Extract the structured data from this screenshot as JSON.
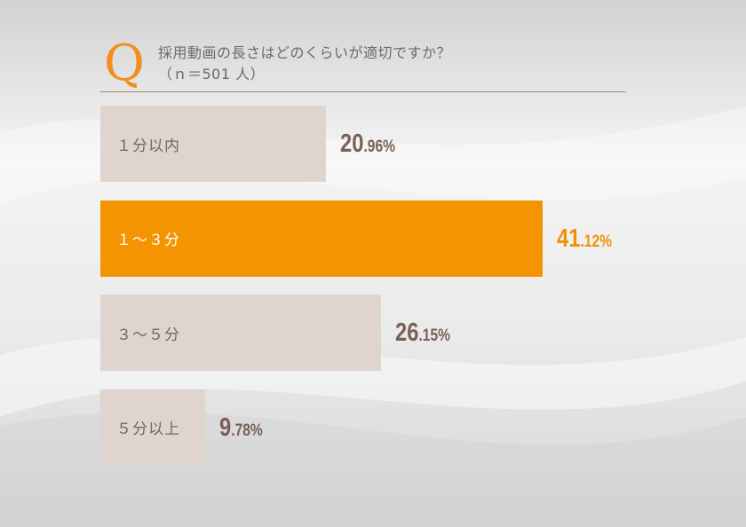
{
  "question": {
    "mark": "Q",
    "line1": "採用動画の長さはどのくらいが適切ですか？",
    "line2": "（ｎ＝501 人）"
  },
  "colors": {
    "highlight": "#f39400",
    "bar": "#e0d4ce",
    "value": "#7a5f56",
    "highlight_value": "#f0900a"
  },
  "chart_data": {
    "type": "bar",
    "orientation": "horizontal",
    "categories": [
      "１分以内",
      "１～３分",
      "３～５分",
      "５分以上"
    ],
    "values": [
      20.96,
      41.12,
      26.15,
      9.78
    ],
    "value_labels": [
      {
        "int": "20",
        "dec": ".96%"
      },
      {
        "int": "41",
        "dec": ".12%"
      },
      {
        "int": "26",
        "dec": ".15%"
      },
      {
        "int": "9",
        "dec": ".78%"
      }
    ],
    "highlight_index": 1,
    "grid": false,
    "legend": "none"
  }
}
